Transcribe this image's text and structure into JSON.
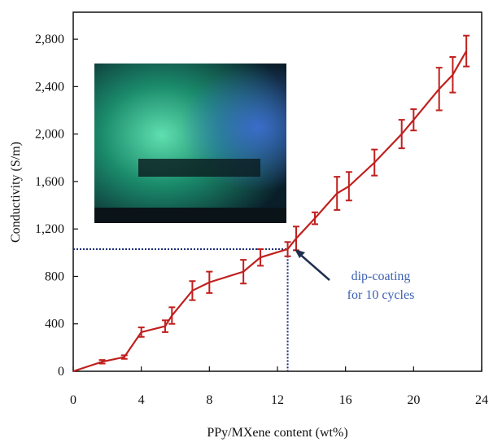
{
  "chart_data": {
    "type": "line",
    "x_label": "PPy/MXene content (wt%)",
    "y_label": "Conductivity (S/m)",
    "color": "#c0201e",
    "x": [
      0,
      1.7,
      3,
      4,
      5.4,
      5.8,
      7,
      8,
      10,
      11,
      12.6,
      13.1,
      14.2,
      15.5,
      16.2,
      17.7,
      19.3,
      20,
      21.5,
      22.3,
      23.1
    ],
    "values": [
      0,
      80,
      120,
      330,
      380,
      470,
      680,
      750,
      840,
      960,
      1030,
      1120,
      1290,
      1500,
      1560,
      1760,
      2000,
      2120,
      2380,
      2500,
      2700
    ],
    "errors": [
      0,
      15,
      15,
      40,
      50,
      70,
      80,
      90,
      100,
      70,
      60,
      100,
      50,
      140,
      120,
      110,
      120,
      90,
      180,
      150,
      130
    ],
    "xlim": [
      0,
      24
    ],
    "xticks": [
      0,
      4,
      8,
      12,
      16,
      20,
      24
    ],
    "ylim": [
      0,
      3000
    ],
    "yticks": [
      0,
      400,
      800,
      {
        "value": 1200,
        "label": "1,200"
      },
      {
        "value": 1600,
        "label": "1,600"
      },
      {
        "value": 2000,
        "label": "2,000"
      },
      {
        "value": 2400,
        "label": "2,400"
      },
      {
        "value": 2800,
        "label": "2,800"
      }
    ],
    "annotation": [
      "dip-coating",
      "for 10 cycles"
    ],
    "annotation_color": "#3a5fb0",
    "highlight_index": 10
  }
}
